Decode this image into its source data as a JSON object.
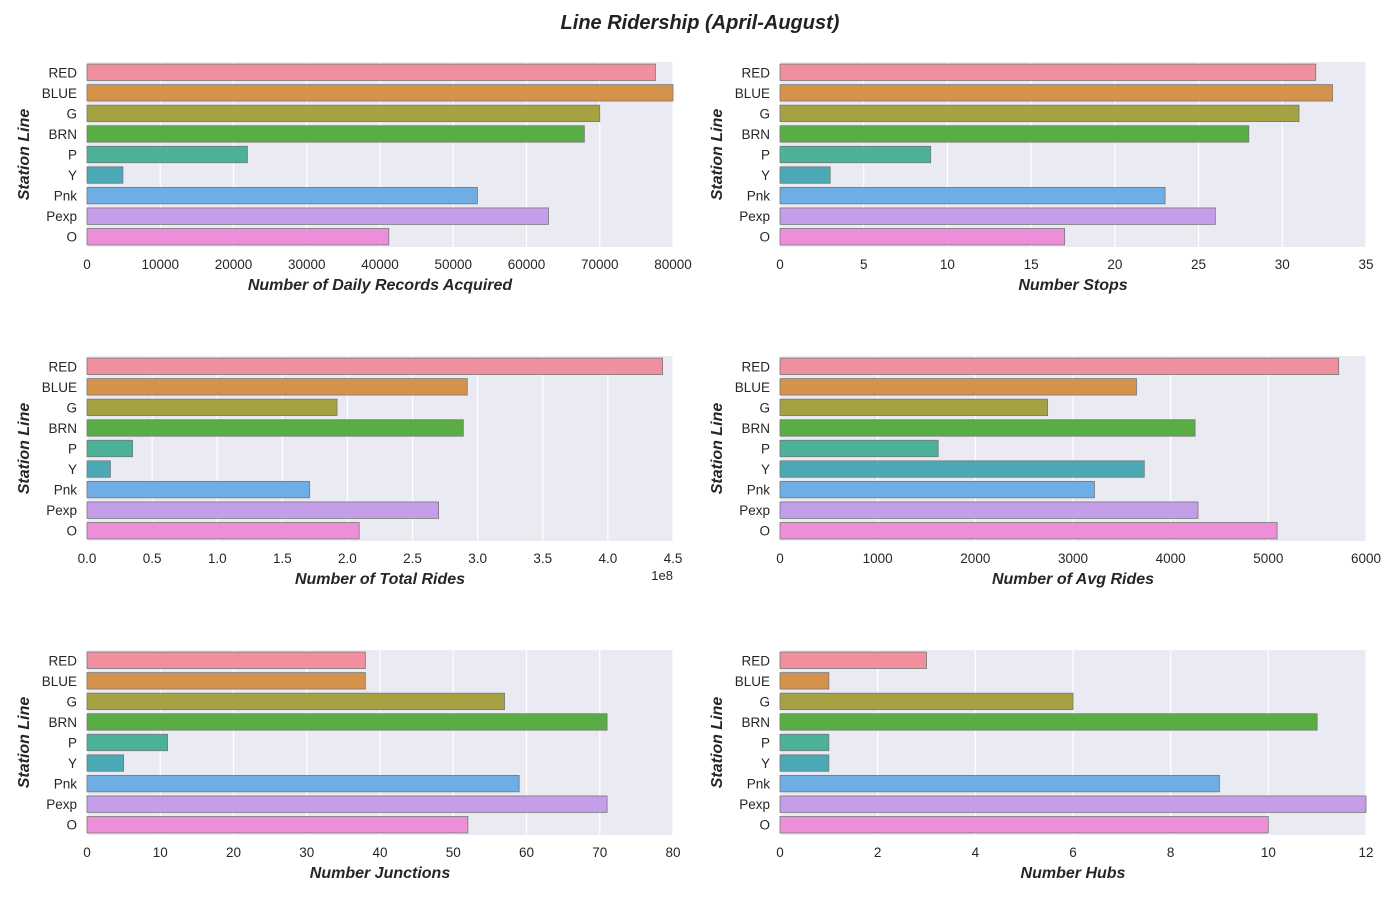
{
  "title": "Line Ridership (April-August)",
  "style": {
    "panel_bg": "#eaeaf2",
    "grid": "#ffffff",
    "palette": [
      "#f0909f",
      "#d5924a",
      "#a5a244",
      "#5aad45",
      "#4bb199",
      "#4ba9b6",
      "#6eaee4",
      "#c49ee9",
      "#ed8fd8"
    ],
    "edge": "#777777"
  },
  "chart_data": [
    {
      "type": "bar",
      "orientation": "horizontal",
      "categories": [
        "RED",
        "BLUE",
        "G",
        "BRN",
        "P",
        "Y",
        "Pnk",
        "Pexp",
        "O"
      ],
      "values": [
        77600,
        80000,
        70000,
        67900,
        21900,
        4900,
        53300,
        63000,
        41200
      ],
      "xlabel": "Number of Daily Records Acquired",
      "ylabel": "Station Line",
      "xlim": [
        0,
        80000
      ],
      "xticks": [
        0,
        10000,
        20000,
        30000,
        40000,
        50000,
        60000,
        70000,
        80000
      ],
      "xtick_labels": [
        "0",
        "10000",
        "20000",
        "30000",
        "40000",
        "50000",
        "60000",
        "70000",
        "80000"
      ],
      "offset_text": "",
      "grid": true
    },
    {
      "type": "bar",
      "orientation": "horizontal",
      "categories": [
        "RED",
        "BLUE",
        "G",
        "BRN",
        "P",
        "Y",
        "Pnk",
        "Pexp",
        "O"
      ],
      "values": [
        32,
        33,
        31,
        28,
        9,
        3,
        23,
        26,
        17
      ],
      "xlabel": "Number Stops",
      "ylabel": "Station Line",
      "xlim": [
        0,
        35
      ],
      "xticks": [
        0,
        5,
        10,
        15,
        20,
        25,
        30,
        35
      ],
      "xtick_labels": [
        "0",
        "5",
        "10",
        "15",
        "20",
        "25",
        "30",
        "35"
      ],
      "offset_text": "",
      "grid": true
    },
    {
      "type": "bar",
      "orientation": "horizontal",
      "categories": [
        "RED",
        "BLUE",
        "G",
        "BRN",
        "P",
        "Y",
        "Pnk",
        "Pexp",
        "O"
      ],
      "values": [
        4.42,
        2.92,
        1.92,
        2.89,
        0.35,
        0.18,
        1.71,
        2.7,
        2.09
      ],
      "xlabel": "Number of Total Rides",
      "ylabel": "Station Line",
      "xlim": [
        0,
        4.5
      ],
      "xticks": [
        0,
        0.5,
        1.0,
        1.5,
        2.0,
        2.5,
        3.0,
        3.5,
        4.0,
        4.5
      ],
      "xtick_labels": [
        "0.0",
        "0.5",
        "1.0",
        "1.5",
        "2.0",
        "2.5",
        "3.0",
        "3.5",
        "4.0",
        "4.5"
      ],
      "offset_text": "1e8",
      "grid": true
    },
    {
      "type": "bar",
      "orientation": "horizontal",
      "categories": [
        "RED",
        "BLUE",
        "G",
        "BRN",
        "P",
        "Y",
        "Pnk",
        "Pexp",
        "O"
      ],
      "values": [
        5720,
        3650,
        2740,
        4250,
        1620,
        3730,
        3220,
        4280,
        5090
      ],
      "xlabel": "Number of Avg Rides",
      "ylabel": "Station Line",
      "xlim": [
        0,
        6000
      ],
      "xticks": [
        0,
        1000,
        2000,
        3000,
        4000,
        5000,
        6000
      ],
      "xtick_labels": [
        "0",
        "1000",
        "2000",
        "3000",
        "4000",
        "5000",
        "6000"
      ],
      "offset_text": "",
      "grid": true
    },
    {
      "type": "bar",
      "orientation": "horizontal",
      "categories": [
        "RED",
        "BLUE",
        "G",
        "BRN",
        "P",
        "Y",
        "Pnk",
        "Pexp",
        "O"
      ],
      "values": [
        38,
        38,
        57,
        71,
        11,
        5,
        59,
        71,
        52
      ],
      "xlabel": "Number Junctions",
      "ylabel": "Station Line",
      "xlim": [
        0,
        80
      ],
      "xticks": [
        0,
        10,
        20,
        30,
        40,
        50,
        60,
        70,
        80
      ],
      "xtick_labels": [
        "0",
        "10",
        "20",
        "30",
        "40",
        "50",
        "60",
        "70",
        "80"
      ],
      "offset_text": "",
      "grid": true
    },
    {
      "type": "bar",
      "orientation": "horizontal",
      "categories": [
        "RED",
        "BLUE",
        "G",
        "BRN",
        "P",
        "Y",
        "Pnk",
        "Pexp",
        "O"
      ],
      "values": [
        3,
        1,
        6,
        11,
        1,
        1,
        9,
        12,
        10
      ],
      "xlabel": "Number Hubs",
      "ylabel": "Station Line",
      "xlim": [
        0,
        12
      ],
      "xticks": [
        0,
        2,
        4,
        6,
        8,
        10,
        12
      ],
      "xtick_labels": [
        "0",
        "2",
        "4",
        "6",
        "8",
        "10",
        "12"
      ],
      "offset_text": "",
      "grid": true
    }
  ]
}
